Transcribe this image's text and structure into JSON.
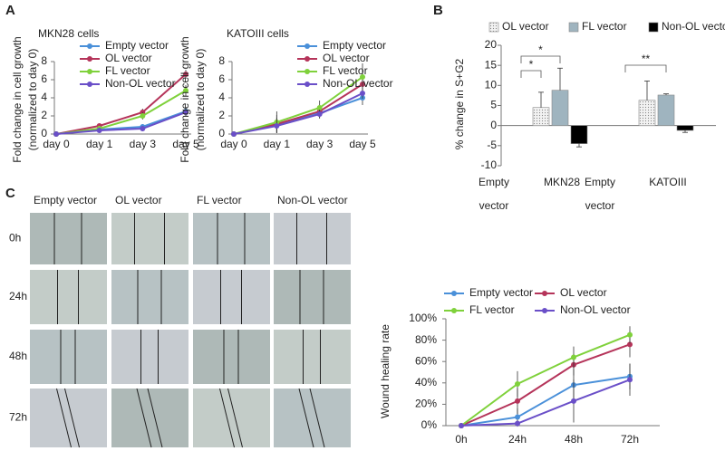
{
  "panel_labels": [
    "A",
    "B",
    "C"
  ],
  "wound_images": {
    "columns": [
      "Empty vector",
      "OL vector",
      "FL vector",
      "Non-OL  vector"
    ],
    "rows": [
      "0h",
      "24h",
      "48h",
      "72h"
    ]
  },
  "chart_data": [
    {
      "type": "line",
      "title": "MKN28 cells",
      "y_label": [
        "Fold change in cell growth",
        "(normalized to day 0)"
      ],
      "categories": [
        "day 0",
        "day 1",
        "day 3",
        "day 5"
      ],
      "ylim": [
        0,
        8
      ],
      "yticks": [
        0,
        2,
        4,
        6,
        8
      ],
      "grid": false,
      "series": [
        {
          "name": "Empty vector",
          "color": "#4a90d9",
          "values": [
            0,
            0.5,
            0.8,
            2.5
          ],
          "errors": [
            0,
            0.2,
            0.3,
            0.5
          ]
        },
        {
          "name": "OL vector",
          "color": "#b5345a",
          "values": [
            0,
            0.9,
            2.4,
            6.6
          ],
          "errors": [
            0,
            0.2,
            0.4,
            0.5
          ]
        },
        {
          "name": "FL vector",
          "color": "#7fd13b",
          "values": [
            0,
            0.6,
            2.0,
            4.8
          ],
          "errors": [
            0,
            0.2,
            0.4,
            0.6
          ]
        },
        {
          "name": "Non-OL vector",
          "color": "#6a4fc8",
          "values": [
            0,
            0.4,
            0.6,
            2.4
          ],
          "errors": [
            0,
            0.2,
            0.3,
            0.4
          ]
        }
      ]
    },
    {
      "type": "line",
      "title": "KATOIII cells",
      "y_label": [
        "Fold change in cell growth",
        "(normalized to day 0)"
      ],
      "categories": [
        "day 0",
        "day 1",
        "day 3",
        "day 5"
      ],
      "ylim": [
        0,
        8
      ],
      "yticks": [
        0,
        2,
        4,
        6,
        8
      ],
      "grid": false,
      "series": [
        {
          "name": "Empty vector",
          "color": "#4a90d9",
          "values": [
            0,
            1.0,
            2.3,
            4.0
          ],
          "errors": [
            0,
            0.8,
            0.5,
            0.8
          ]
        },
        {
          "name": "OL vector",
          "color": "#b5345a",
          "values": [
            0,
            1.1,
            2.5,
            5.5
          ],
          "errors": [
            0,
            1.0,
            0.6,
            1.0
          ]
        },
        {
          "name": "FL vector",
          "color": "#7fd13b",
          "values": [
            0,
            1.3,
            2.9,
            6.3
          ],
          "errors": [
            0,
            1.2,
            0.8,
            1.5
          ]
        },
        {
          "name": "Non-OL vector",
          "color": "#6a4fc8",
          "values": [
            0,
            0.9,
            2.2,
            4.5
          ],
          "errors": [
            0,
            0.8,
            0.5,
            0.6
          ]
        }
      ]
    },
    {
      "type": "bar",
      "y_label": "% change in S+G2",
      "categories": [
        "MKN28",
        "KATOIII"
      ],
      "reference_label": [
        "Empty",
        "vector"
      ],
      "ylim": [
        -10,
        20
      ],
      "yticks": [
        -10,
        -5,
        0,
        5,
        10,
        15,
        20
      ],
      "grid": false,
      "series": [
        {
          "name": "OL vector",
          "color": "#e4e4e4",
          "values": [
            4.5,
            6.3
          ],
          "errors": [
            3.8,
            4.8
          ]
        },
        {
          "name": "FL vector",
          "color": "#9fb4bf",
          "values": [
            8.8,
            7.6
          ],
          "errors": [
            5.5,
            0.3
          ]
        },
        {
          "name": "Non-OL vector",
          "color": "#000000",
          "values": [
            -4.5,
            -1.2
          ],
          "errors": [
            0.8,
            0.5
          ]
        }
      ],
      "annotations": [
        "*",
        "*",
        "**"
      ]
    },
    {
      "type": "line",
      "y_label": [
        "Wound healing rate"
      ],
      "categories": [
        "0h",
        "24h",
        "48h",
        "72h"
      ],
      "ylim": [
        0,
        100
      ],
      "yticks": [
        {
          "value": 0,
          "label": "0%"
        },
        {
          "value": 20,
          "label": "20%"
        },
        {
          "value": 40,
          "label": "40%"
        },
        {
          "value": 60,
          "label": "60%"
        },
        {
          "value": 80,
          "label": "80%"
        },
        {
          "value": 100,
          "label": "100%"
        }
      ],
      "grid": false,
      "series": [
        {
          "name": "Empty vector",
          "color": "#4a90d9",
          "values": [
            0,
            8,
            38,
            46
          ],
          "errors": [
            0,
            8,
            15,
            12
          ]
        },
        {
          "name": "OL vector",
          "color": "#b5345a",
          "values": [
            0,
            23,
            57,
            76
          ],
          "errors": [
            0,
            12,
            10,
            12
          ]
        },
        {
          "name": "FL vector",
          "color": "#7fd13b",
          "values": [
            0,
            39,
            64,
            85
          ],
          "errors": [
            0,
            12,
            10,
            8
          ]
        },
        {
          "name": "Non-OL vector",
          "color": "#6a4fc8",
          "values": [
            0,
            2,
            23,
            43
          ],
          "errors": [
            0,
            3,
            20,
            15
          ]
        }
      ]
    }
  ]
}
